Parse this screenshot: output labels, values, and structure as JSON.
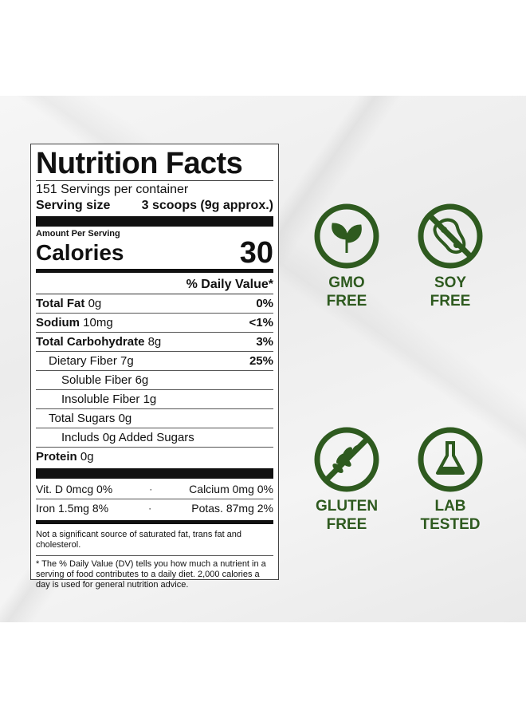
{
  "label": {
    "title": "Nutrition Facts",
    "servings": "151 Servings per container",
    "serving_size": {
      "label": "Serving size",
      "value": "3 scoops (9g approx.)"
    },
    "amount_per_serving": "Amount Per Serving",
    "calories": {
      "label": "Calories",
      "value": "30"
    },
    "daily_value_header": "% Daily Value*",
    "rows": [
      {
        "name": "Total Fat",
        "amount": "0g",
        "dv": "0%"
      },
      {
        "name": "Sodium",
        "amount": "10mg",
        "dv": "<1%"
      },
      {
        "name": "Total Carbohydrate",
        "amount": "8g",
        "dv": "3%"
      },
      {
        "name": "Dietary Fiber",
        "amount": "7g",
        "dv": "25%"
      },
      {
        "name": "Soluble Fiber",
        "amount": "6g"
      },
      {
        "name": "Insoluble Fiber",
        "amount": "1g"
      },
      {
        "name": "Total Sugars",
        "amount": "0g"
      },
      {
        "name": "Includs 0g Added Sugars"
      },
      {
        "name": "Protein",
        "amount": "0g"
      }
    ],
    "vitamins": [
      [
        "Vit. D 0mcg 0%",
        "Calcium 0mg 0%"
      ],
      [
        "Iron 1.5mg 8%",
        "Potas. 87mg 2%"
      ]
    ],
    "separator": "·",
    "footnotes": [
      "Not a significant source of saturated fat, trans fat and cholesterol.",
      "* The % Daily Value (DV) tells you how much a nutrient in a serving of food contributes to a daily diet. 2,000 calories a day is used for general nutrition advice."
    ]
  },
  "badges": [
    {
      "lines": [
        "GMO",
        "FREE"
      ]
    },
    {
      "lines": [
        "SOY",
        "FREE"
      ]
    },
    {
      "lines": [
        "GLUTEN",
        "FREE"
      ]
    },
    {
      "lines": [
        "LAB",
        "TESTED"
      ]
    }
  ]
}
